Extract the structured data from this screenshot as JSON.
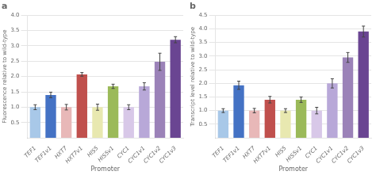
{
  "chart_data": [
    {
      "type": "bar",
      "title": "a",
      "categories": [
        "TEF1",
        "TEF1v1",
        "HXT7",
        "HXT7v1",
        "HIS5",
        "HIS5v1",
        "CYC1",
        "CYC1v1",
        "CYC1v2",
        "CYC1v3"
      ],
      "values": [
        1.0,
        1.4,
        1.0,
        2.07,
        1.0,
        1.68,
        1.0,
        1.68,
        2.48,
        3.2
      ],
      "errors": [
        0.08,
        0.09,
        0.09,
        0.06,
        0.1,
        0.07,
        0.08,
        0.12,
        0.28,
        0.1
      ],
      "colors": [
        "#a8c8e8",
        "#4472c4",
        "#e8b8b8",
        "#c0504d",
        "#e8e8b0",
        "#9bba59",
        "#d8c8e8",
        "#b8a8d8",
        "#9b82b8",
        "#6a4592"
      ],
      "xlabel": "Promoter",
      "ylabel": "Fluorescence relative to wild-type",
      "ylim": [
        0,
        4.0
      ],
      "yticks": [
        0.5,
        {
          "value": 1.0,
          "label": "1.0"
        },
        1.5,
        {
          "value": 2.0,
          "label": "2.0"
        },
        2.5,
        {
          "value": 3.0,
          "label": "3.0"
        },
        3.5,
        {
          "value": 4.0,
          "label": "4.0"
        }
      ],
      "grid": true
    },
    {
      "type": "bar",
      "title": "b",
      "categories": [
        "TEF1",
        "TEF1v1",
        "HXT7",
        "HXT7v1",
        "HIS5",
        "HIS5v1",
        "CYC1",
        "CYC1v1",
        "CYC1v2",
        "CYC1v3"
      ],
      "values": [
        1.0,
        1.93,
        1.0,
        1.4,
        1.0,
        1.4,
        1.0,
        2.0,
        2.95,
        3.9
      ],
      "errors": [
        0.07,
        0.15,
        0.08,
        0.12,
        0.07,
        0.1,
        0.12,
        0.17,
        0.18,
        0.2
      ],
      "colors": [
        "#a8c8e8",
        "#4472c4",
        "#e8b8b8",
        "#c0504d",
        "#e8e8b0",
        "#9bba59",
        "#d8c8e8",
        "#b8a8d8",
        "#9b82b8",
        "#6a4592"
      ],
      "xlabel": "Promoter",
      "ylabel": "Transcript level relative to wild-type",
      "ylim": [
        0,
        4.5
      ],
      "yticks": [
        0.5,
        {
          "value": 1.0,
          "label": "1.0"
        },
        1.5,
        {
          "value": 2.0,
          "label": "2.0"
        },
        2.5,
        {
          "value": 3.0,
          "label": "3.0"
        },
        3.5,
        {
          "value": 4.0,
          "label": "4.0"
        },
        4.5
      ],
      "grid": true
    }
  ]
}
